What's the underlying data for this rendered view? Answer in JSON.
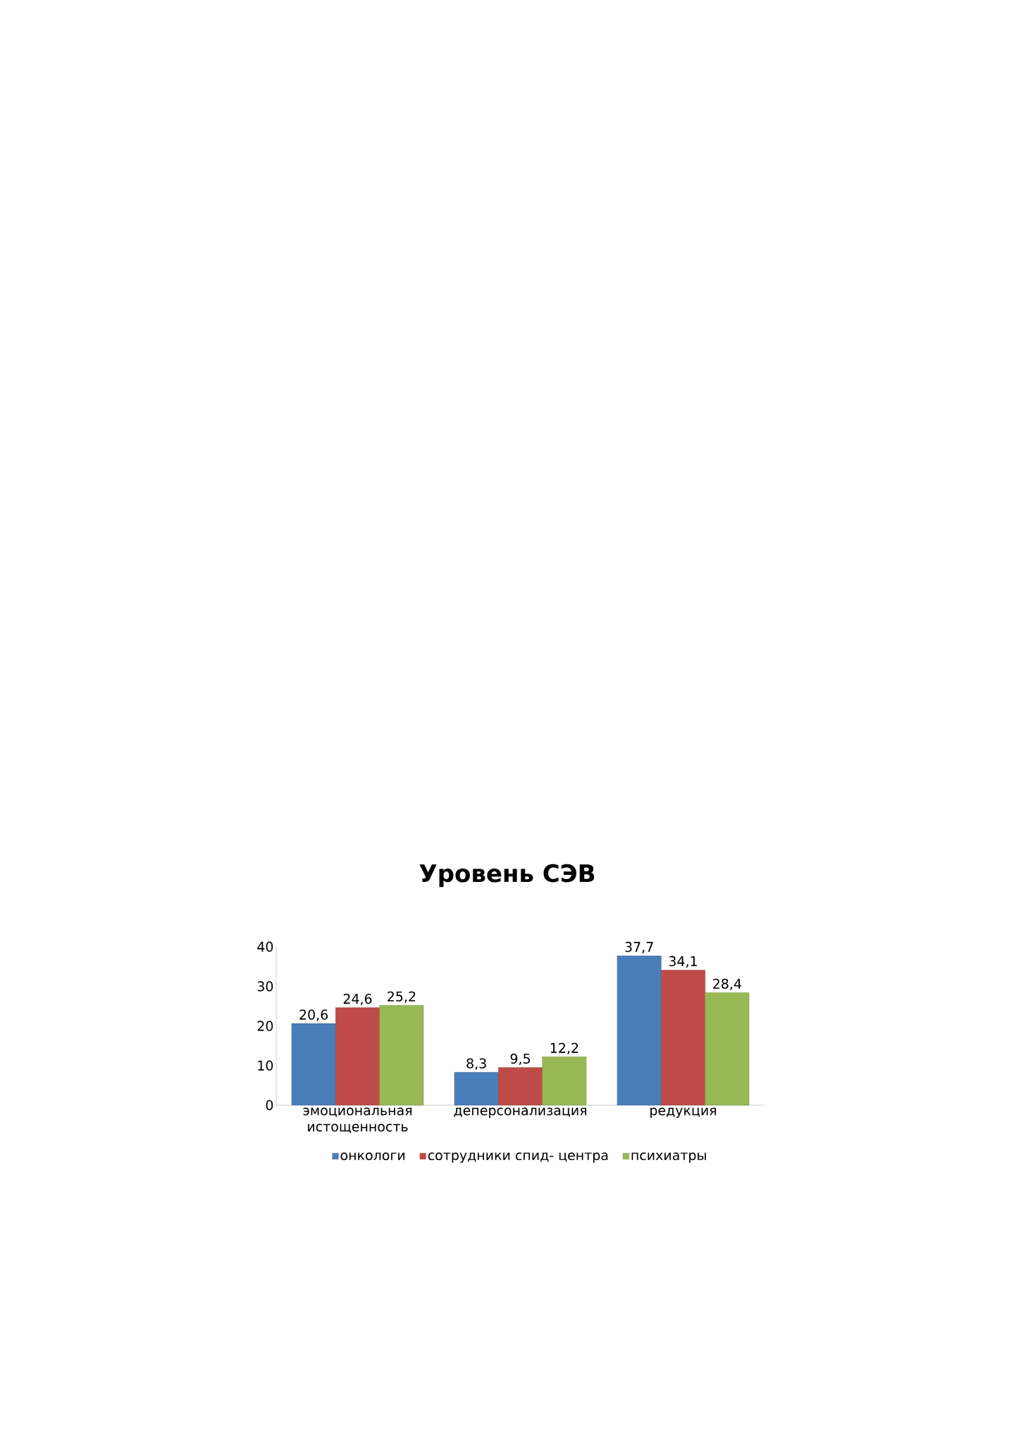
{
  "chart_data": {
    "type": "bar",
    "title": "Уровень СЭВ",
    "categories": [
      "эмоциональная истощенность",
      "деперсонализация",
      "редукция"
    ],
    "series": [
      {
        "name": "онкологи",
        "color": "#4a7ebb",
        "values": [
          20.6,
          8.3,
          37.7
        ],
        "value_labels": [
          "20,6",
          "8,3",
          "37,7"
        ]
      },
      {
        "name": "сотрудники спид- центра",
        "color": "#be4b48",
        "values": [
          24.6,
          9.5,
          34.1
        ],
        "value_labels": [
          "24,6",
          "9,5",
          "34,1"
        ]
      },
      {
        "name": "психиатры",
        "color": "#98b954",
        "values": [
          25.2,
          12.2,
          28.4
        ],
        "value_labels": [
          "25,2",
          "12,2",
          "28,4"
        ]
      }
    ],
    "ylim": [
      0,
      40
    ],
    "yticks": [
      0,
      10,
      20,
      30,
      40
    ],
    "grid": false,
    "legend": "bottom"
  }
}
